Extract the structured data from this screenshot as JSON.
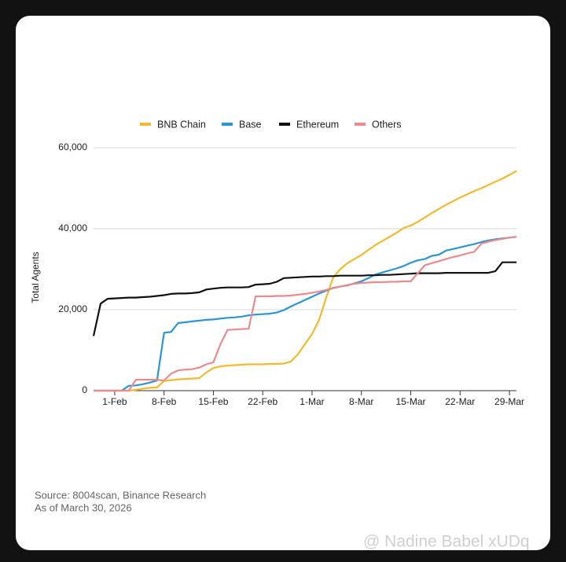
{
  "chart_data": {
    "type": "line",
    "y_label": "Total Agents",
    "categories": [
      null,
      null,
      null,
      "1-Feb",
      null,
      null,
      null,
      null,
      null,
      null,
      "8-Feb",
      null,
      null,
      null,
      null,
      null,
      null,
      "15-Feb",
      null,
      null,
      null,
      null,
      null,
      null,
      "22-Feb",
      null,
      null,
      null,
      null,
      null,
      null,
      "1-Mar",
      null,
      null,
      null,
      null,
      null,
      null,
      "8-Mar",
      null,
      null,
      null,
      null,
      null,
      null,
      "15-Mar",
      null,
      null,
      null,
      null,
      null,
      null,
      "22-Mar",
      null,
      null,
      null,
      null,
      null,
      null,
      "29-Mar",
      null
    ],
    "series": [
      {
        "name": "BNB Chain",
        "color": "#f3ba2f",
        "values": [
          0,
          0,
          0,
          0,
          0,
          0,
          200,
          500,
          700,
          800,
          2400,
          2600,
          2800,
          2900,
          3000,
          3100,
          4500,
          5600,
          6000,
          6200,
          6300,
          6400,
          6500,
          6500,
          6500,
          6600,
          6600,
          6700,
          7200,
          9000,
          11500,
          14000,
          17500,
          23000,
          28000,
          30000,
          31500,
          32500,
          33500,
          34800,
          36000,
          37000,
          38000,
          39000,
          40200,
          40800,
          41700,
          42800,
          43900,
          44900,
          45900,
          46800,
          47700,
          48500,
          49300,
          50000,
          50800,
          51600,
          52400,
          53300,
          54300
        ]
      },
      {
        "name": "Base",
        "color": "#2a96d4",
        "values": [
          0,
          0,
          0,
          0,
          0,
          1200,
          1300,
          1600,
          2000,
          2500,
          14300,
          14500,
          16700,
          16900,
          17100,
          17300,
          17500,
          17600,
          17800,
          18000,
          18100,
          18300,
          18600,
          18800,
          18900,
          19000,
          19300,
          19900,
          20800,
          21600,
          22400,
          23200,
          24000,
          24700,
          25400,
          25700,
          26000,
          26500,
          27000,
          27800,
          28700,
          29200,
          29700,
          30200,
          30800,
          31600,
          32200,
          32500,
          33300,
          33600,
          34600,
          35000,
          35400,
          35800,
          36200,
          36700,
          37100,
          37400,
          37600,
          37800,
          38000
        ]
      },
      {
        "name": "Ethereum",
        "color": "#111111",
        "values": [
          13500,
          21500,
          22700,
          22800,
          22900,
          23000,
          23000,
          23100,
          23200,
          23400,
          23600,
          23900,
          24000,
          24000,
          24100,
          24300,
          25000,
          25200,
          25400,
          25500,
          25500,
          25500,
          25600,
          26200,
          26300,
          26400,
          26900,
          27800,
          27900,
          28000,
          28100,
          28200,
          28200,
          28300,
          28300,
          28400,
          28400,
          28400,
          28400,
          28500,
          28500,
          28600,
          28600,
          28700,
          28800,
          28900,
          29000,
          29000,
          29000,
          29000,
          29100,
          29100,
          29100,
          29100,
          29100,
          29100,
          29100,
          29500,
          31700,
          31700,
          31700
        ]
      },
      {
        "name": "Others",
        "color": "#ec8a8c",
        "values": [
          0,
          0,
          0,
          0,
          0,
          0,
          2700,
          2700,
          2700,
          2700,
          2500,
          4200,
          5000,
          5200,
          5300,
          5700,
          6500,
          7000,
          11500,
          15000,
          15100,
          15200,
          15300,
          23300,
          23300,
          23300,
          23400,
          23400,
          23500,
          23700,
          23900,
          24200,
          24500,
          24900,
          25300,
          25700,
          26100,
          26400,
          26600,
          26700,
          26800,
          26800,
          26900,
          26900,
          27000,
          27000,
          29000,
          31000,
          31500,
          32000,
          32500,
          33000,
          33400,
          33900,
          34300,
          36300,
          36800,
          37200,
          37500,
          37800,
          38000
        ]
      }
    ],
    "ylim": [
      0,
      60000
    ],
    "yticks": [
      0,
      {
        "value": 20000,
        "label": "20,000"
      },
      {
        "value": 40000,
        "label": "40,000"
      },
      {
        "value": 60000,
        "label": "60,000"
      }
    ],
    "grid": true,
    "legend": "top",
    "source": "Source: 8004scan, Binance Research",
    "as_of": "As of March 30, 2026"
  },
  "watermark": "@ Nadine Babel xUDq"
}
